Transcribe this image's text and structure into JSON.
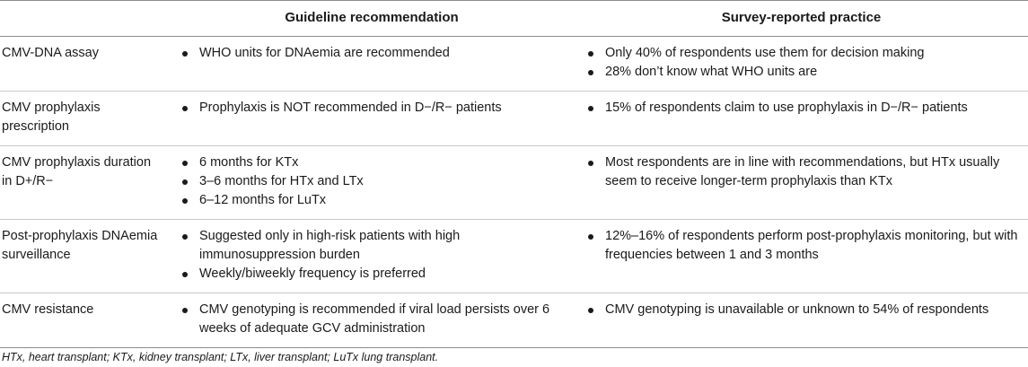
{
  "headers": {
    "col1": "",
    "col2": "Guideline recommendation",
    "col3": "Survey-reported practice"
  },
  "rows": [
    {
      "topic": "CMV-DNA assay",
      "guideline": [
        "WHO units for DNAemia are recommended"
      ],
      "survey": [
        "Only 40% of respondents use them for decision making",
        "28% don’t know what WHO units are"
      ]
    },
    {
      "topic": "CMV prophylaxis prescription",
      "guideline": [
        "Prophylaxis is NOT recommended in D−/R− patients"
      ],
      "survey": [
        "15% of respondents claim to use prophylaxis in D−/R− patients"
      ]
    },
    {
      "topic": "CMV prophylaxis duration in D+/R−",
      "guideline": [
        "6 months for KTx",
        "3–6 months for HTx and LTx",
        "6–12 months for LuTx"
      ],
      "survey": [
        "Most respondents are in line with recommendations, but HTx usually seem to receive longer-term prophylaxis than KTx"
      ]
    },
    {
      "topic": "Post-prophylaxis DNAemia surveillance",
      "guideline": [
        "Suggested only in high-risk patients with high immunosuppression burden",
        "Weekly/biweekly frequency is preferred"
      ],
      "survey": [
        "12%–16% of respondents perform post-prophylaxis monitoring, but with frequencies between 1 and 3 months"
      ]
    },
    {
      "topic": "CMV resistance",
      "guideline": [
        "CMV genotyping is recommended if viral load persists over 6 weeks of adequate GCV administration"
      ],
      "survey": [
        "CMV genotyping is unavailable or unknown to 54% of respondents"
      ]
    }
  ],
  "footnote": "HTx, heart transplant; KTx, kidney transplant; LTx, liver transplant; LuTx lung transplant."
}
